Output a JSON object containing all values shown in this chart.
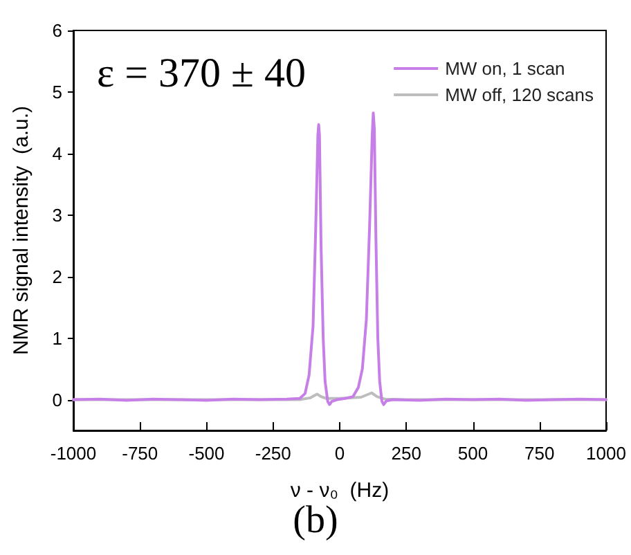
{
  "chart_data": {
    "type": "line",
    "xlabel": "ν - ν₀  (Hz)",
    "ylabel": "NMR signal intensity  (a.u.)",
    "annotations": [
      "ε = 370 ± 40",
      "(b)"
    ],
    "xlim": [
      -1000,
      1000
    ],
    "xticks": [
      -1000,
      -750,
      -500,
      -250,
      0,
      250,
      500,
      750,
      1000
    ],
    "ylim": [
      -0.5,
      6
    ],
    "yticks": [
      0,
      1,
      2,
      3,
      4,
      5,
      6
    ],
    "grid": false,
    "legend": "top right",
    "marker": "none",
    "line_style": "solid",
    "series": [
      {
        "name": "MW on, 1 scan",
        "color": "#c77fe8",
        "x": [
          -1000,
          -900,
          -800,
          -700,
          -600,
          -500,
          -400,
          -300,
          -200,
          -150,
          -130,
          -115,
          -100,
          -90,
          -82,
          -79,
          -76,
          -70,
          -62,
          -55,
          -45,
          -38,
          -30,
          -10,
          20,
          50,
          70,
          85,
          100,
          112,
          122,
          126,
          130,
          136,
          143,
          150,
          158,
          165,
          175,
          200,
          300,
          400,
          500,
          600,
          700,
          800,
          900,
          1000
        ],
        "values": [
          0,
          0.01,
          -0.01,
          0.01,
          0,
          -0.01,
          0.01,
          0,
          0.01,
          0.02,
          0.1,
          0.4,
          1.2,
          2.8,
          4.3,
          4.47,
          4.3,
          2.5,
          1.0,
          0.3,
          -0.03,
          -0.08,
          -0.03,
          0,
          0.02,
          0.05,
          0.2,
          0.5,
          1.3,
          2.8,
          4.3,
          4.66,
          4.4,
          2.6,
          1.0,
          0.3,
          -0.02,
          -0.08,
          -0.02,
          0,
          -0.01,
          0.01,
          0,
          0.01,
          -0.01,
          0,
          0.01,
          0
        ]
      },
      {
        "name": "MW off, 120 scans",
        "color": "#bdbdbd",
        "x": [
          -1000,
          -800,
          -600,
          -400,
          -200,
          -150,
          -110,
          -85,
          -70,
          -50,
          0,
          80,
          120,
          140,
          170,
          250,
          400,
          600,
          800,
          1000
        ],
        "values": [
          0,
          0,
          0,
          0,
          0,
          0,
          0.03,
          0.09,
          0.05,
          0.02,
          0.02,
          0.04,
          0.11,
          0.05,
          0.01,
          0,
          0,
          0,
          0,
          0
        ]
      }
    ]
  }
}
